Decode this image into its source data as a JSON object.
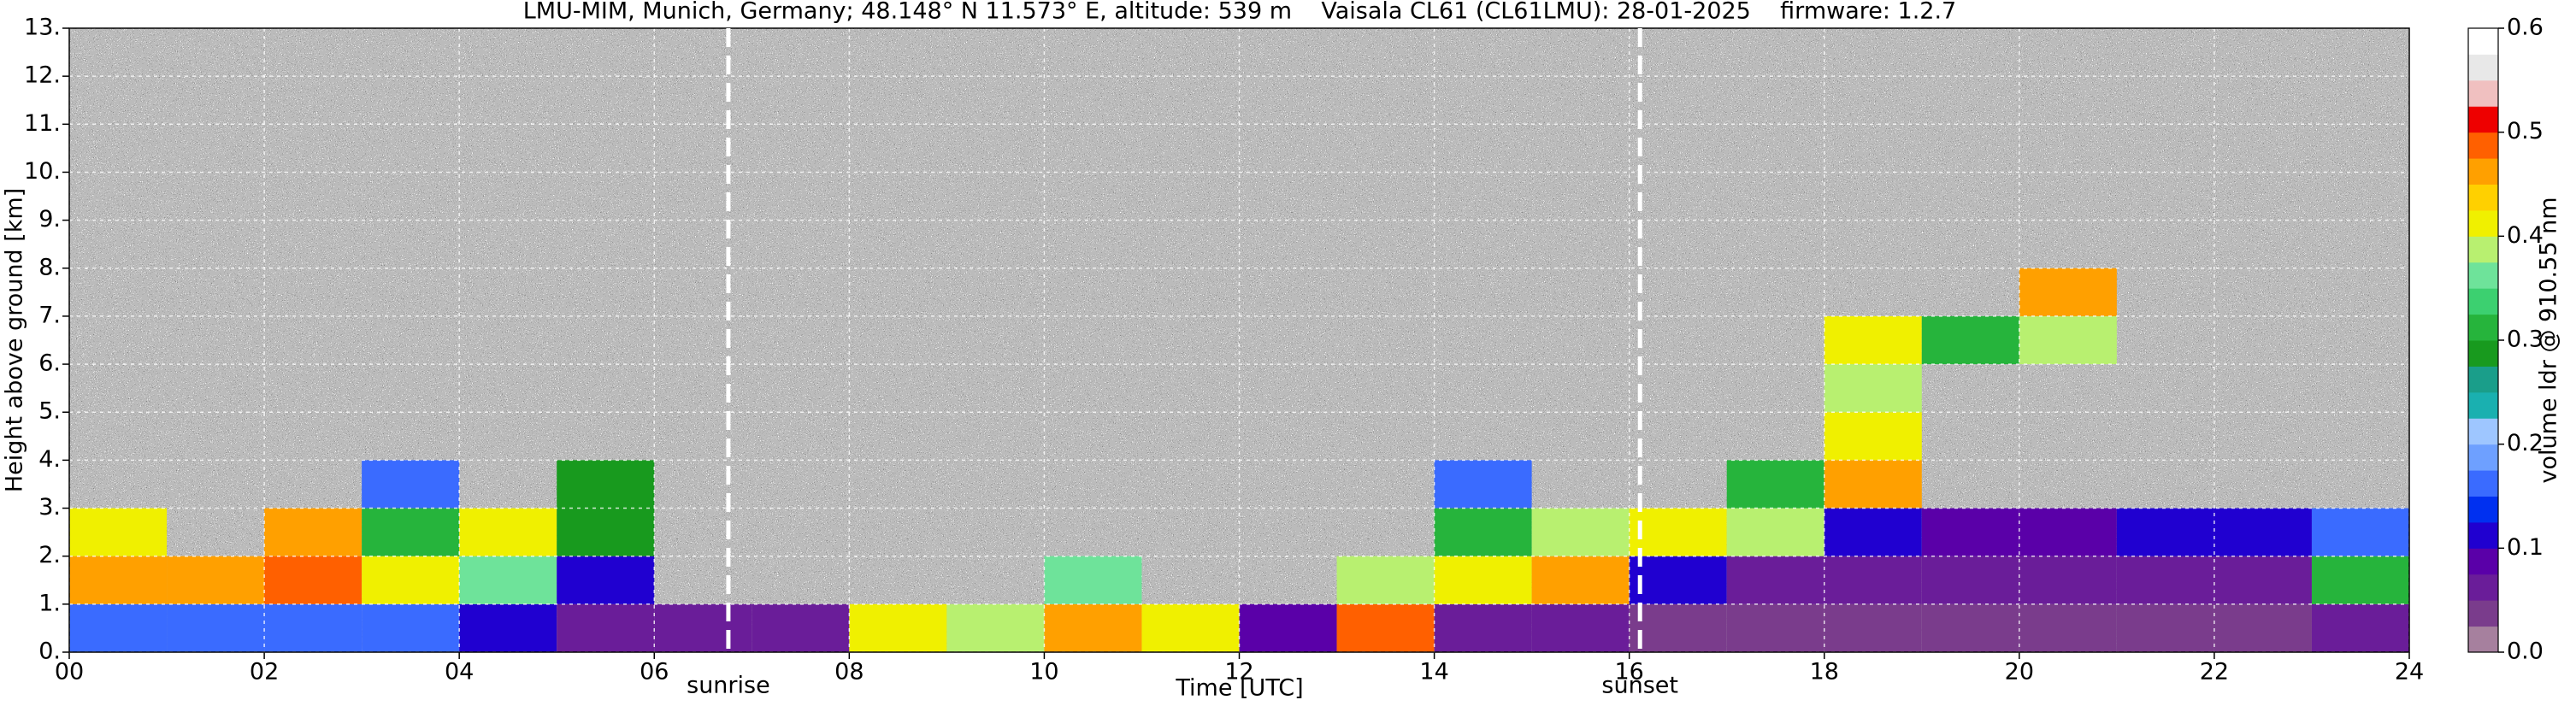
{
  "chart_data": {
    "type": "heatmap",
    "title": "LMU-MIM, Munich, Germany; 48.148° N 11.573° E, altitude: 539 m    Vaisala CL61 (CL61LMU): 28-01-2025    firmware: 1.2.7",
    "xlabel": "Time [UTC]",
    "ylabel": "Height above ground [km]",
    "colorbar_label": "volume ldr @ 910.55 nm",
    "xlim": [
      0,
      24
    ],
    "ylim": [
      0,
      13
    ],
    "xticks": [
      {
        "value": 0,
        "label": "00"
      },
      {
        "value": 2,
        "label": "02"
      },
      {
        "value": 4,
        "label": "04"
      },
      {
        "value": 6,
        "label": "06"
      },
      {
        "value": 8,
        "label": "08"
      },
      {
        "value": 10,
        "label": "10"
      },
      {
        "value": 12,
        "label": "12"
      },
      {
        "value": 14,
        "label": "14"
      },
      {
        "value": 16,
        "label": "16"
      },
      {
        "value": 18,
        "label": "18"
      },
      {
        "value": 20,
        "label": "20"
      },
      {
        "value": 22,
        "label": "22"
      },
      {
        "value": 24,
        "label": "24"
      }
    ],
    "yticks": [
      {
        "value": 0,
        "label": "0."
      },
      {
        "value": 1,
        "label": "1."
      },
      {
        "value": 2,
        "label": "2."
      },
      {
        "value": 3,
        "label": "3."
      },
      {
        "value": 4,
        "label": "4."
      },
      {
        "value": 5,
        "label": "5."
      },
      {
        "value": 6,
        "label": "6."
      },
      {
        "value": 7,
        "label": "7."
      },
      {
        "value": 8,
        "label": "8."
      },
      {
        "value": 9,
        "label": "9."
      },
      {
        "value": 10,
        "label": "10."
      },
      {
        "value": 11,
        "label": "11."
      },
      {
        "value": 12,
        "label": "12."
      },
      {
        "value": 13,
        "label": "13."
      }
    ],
    "zlim": [
      0,
      0.6
    ],
    "zticks": [
      {
        "value": 0,
        "label": "0.0"
      },
      0.1,
      0.2,
      0.3,
      0.4,
      0.5,
      0.6
    ],
    "colorscale": [
      "#a6809e",
      "#7a3c8c",
      "#6a1d99",
      "#5a00a8",
      "#2000d0",
      "#0030f0",
      "#3a6bff",
      "#6ea0ff",
      "#9ec6ff",
      "#1ab0b0",
      "#1a9e8a",
      "#189a1e",
      "#26b43c",
      "#3cd070",
      "#6ee39a",
      "#b8f070",
      "#f0f000",
      "#ffd000",
      "#ffa000",
      "#ff6000",
      "#ee0000",
      "#f0c0c0",
      "#e8e8e8",
      "#ffffff"
    ],
    "grid": true,
    "x_bins": [
      0,
      1,
      2,
      3,
      4,
      5,
      6,
      7,
      8,
      9,
      10,
      11,
      12,
      13,
      14,
      15,
      16,
      17,
      18,
      19,
      20,
      21,
      22,
      23,
      24
    ],
    "y_bins": [
      0,
      1,
      2,
      3,
      4,
      5,
      6,
      7,
      8,
      9,
      10,
      11,
      12,
      13
    ],
    "z": [
      [
        0.15,
        0.15,
        0.15,
        0.15,
        0.12,
        0.05,
        0.05,
        0.05,
        0.4,
        0.38,
        0.45,
        0.42,
        0.08,
        0.48,
        0.06,
        0.05,
        0.04,
        0.03,
        0.03,
        0.03,
        0.03,
        0.03,
        0.03,
        0.05
      ],
      [
        0.45,
        0.47,
        0.48,
        0.4,
        0.35,
        0.1,
        null,
        null,
        null,
        null,
        0.35,
        null,
        null,
        0.38,
        0.42,
        0.45,
        0.1,
        0.06,
        0.06,
        0.05,
        0.05,
        0.05,
        0.05,
        0.3
      ],
      [
        0.42,
        null,
        0.45,
        0.3,
        0.4,
        0.28,
        null,
        null,
        null,
        null,
        null,
        null,
        null,
        null,
        0.3,
        0.38,
        0.4,
        0.38,
        0.1,
        0.08,
        0.08,
        0.1,
        0.1,
        0.15
      ],
      [
        null,
        null,
        null,
        0.15,
        null,
        0.28,
        null,
        null,
        null,
        null,
        null,
        null,
        null,
        null,
        0.15,
        null,
        null,
        0.3,
        0.45,
        null,
        null,
        null,
        null,
        null
      ],
      [
        null,
        null,
        null,
        null,
        null,
        null,
        null,
        null,
        null,
        null,
        null,
        null,
        null,
        null,
        null,
        null,
        null,
        null,
        0.4,
        null,
        null,
        null,
        null,
        null
      ],
      [
        null,
        null,
        null,
        null,
        null,
        null,
        null,
        null,
        null,
        null,
        null,
        null,
        null,
        null,
        null,
        null,
        null,
        null,
        0.38,
        null,
        null,
        null,
        null,
        null
      ],
      [
        null,
        null,
        null,
        null,
        null,
        null,
        null,
        null,
        null,
        null,
        null,
        null,
        null,
        null,
        null,
        null,
        null,
        null,
        0.4,
        0.32,
        0.38,
        null,
        null,
        null
      ],
      [
        null,
        null,
        null,
        null,
        null,
        null,
        null,
        null,
        null,
        null,
        null,
        null,
        null,
        null,
        null,
        null,
        null,
        null,
        null,
        null,
        0.45,
        null,
        null,
        null
      ],
      [
        null,
        null,
        null,
        null,
        null,
        null,
        null,
        null,
        null,
        null,
        null,
        null,
        null,
        null,
        null,
        null,
        null,
        null,
        null,
        null,
        null,
        null,
        null,
        null
      ],
      [
        null,
        null,
        null,
        null,
        null,
        null,
        null,
        null,
        null,
        null,
        null,
        null,
        null,
        null,
        null,
        null,
        null,
        null,
        null,
        null,
        null,
        null,
        null,
        null
      ],
      [
        null,
        null,
        null,
        null,
        null,
        null,
        null,
        null,
        null,
        null,
        null,
        null,
        null,
        null,
        null,
        null,
        null,
        null,
        null,
        null,
        null,
        null,
        null,
        null
      ],
      [
        null,
        null,
        null,
        null,
        null,
        null,
        null,
        null,
        null,
        null,
        null,
        null,
        null,
        null,
        null,
        null,
        null,
        null,
        null,
        null,
        null,
        null,
        null,
        null
      ],
      [
        null,
        null,
        null,
        null,
        null,
        null,
        null,
        null,
        null,
        null,
        null,
        null,
        null,
        null,
        null,
        null,
        null,
        null,
        null,
        null,
        null,
        null,
        null,
        null
      ]
    ],
    "annotations": [
      {
        "text": "sunrise",
        "x": 6.76
      },
      {
        "text": "sunset",
        "x": 16.11
      }
    ]
  }
}
